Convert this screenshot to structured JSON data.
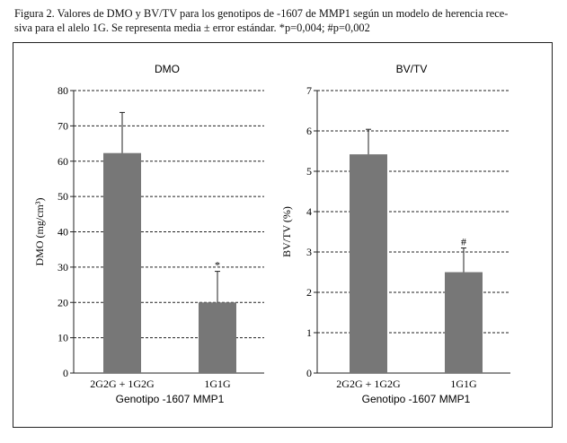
{
  "caption": {
    "line1": "Figura 2. Valores de DMO y BV/TV para los genotipos de -1607 de MMP1 según un modelo de herencia rece-",
    "line2": "siva para el alelo 1G. Se representa media ± error estándar. *p=0,004; #p=0,002"
  },
  "colors": {
    "bar": "#777777",
    "axis": "#222222",
    "grid": "#222222"
  },
  "chart_data": [
    {
      "type": "bar",
      "title": "DMO",
      "ylabel": "DMO (mg/cm³)",
      "xlabel": "Genotipo -1607 MMP1",
      "categories": [
        "2G2G + 1G2G",
        "1G1G"
      ],
      "values": [
        62.3,
        20
      ],
      "errors": [
        11.5,
        8.8
      ],
      "annotations": [
        "",
        "*"
      ],
      "ylim": [
        0,
        80
      ],
      "yticks": [
        0,
        10,
        20,
        30,
        40,
        50,
        60,
        70,
        80
      ],
      "ytick_labels": [
        "0",
        "10",
        "20",
        "30",
        "40",
        "50",
        "60",
        "70",
        "80"
      ],
      "grid": true
    },
    {
      "type": "bar",
      "title": "BV/TV",
      "ylabel": "BV/TV (%)",
      "xlabel": "Genotipo -1607 MMP1",
      "categories": [
        "2G2G + 1G2G",
        "1G1G"
      ],
      "values": [
        5.42,
        2.5
      ],
      "errors": [
        0.62,
        0.6
      ],
      "annotations": [
        "",
        "#"
      ],
      "ylim": [
        0,
        7
      ],
      "yticks": [
        0,
        1,
        2,
        3,
        4,
        5,
        6,
        7
      ],
      "ytick_labels": [
        "0",
        "1",
        "2",
        "3",
        "4",
        "5",
        "6",
        "7"
      ],
      "grid": true
    }
  ]
}
